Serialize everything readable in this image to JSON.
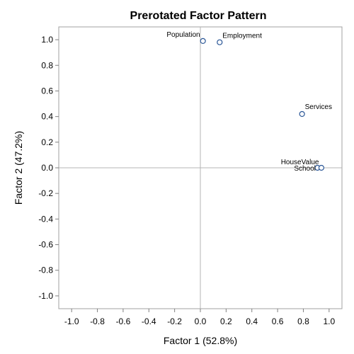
{
  "chart_data": {
    "type": "scatter",
    "title": "Prerotated Factor Pattern",
    "xlabel": "Factor 1 (52.8%)",
    "ylabel": "Factor 2 (47.2%)",
    "xlim": [
      -1.1,
      1.1
    ],
    "ylim": [
      -1.1,
      1.1
    ],
    "xticks": [
      "-1.0",
      "-0.8",
      "-0.6",
      "-0.4",
      "-0.2",
      "0.0",
      "0.2",
      "0.4",
      "0.6",
      "0.8",
      "1.0"
    ],
    "yticks": [
      "1.0",
      "0.8",
      "0.6",
      "0.4",
      "0.2",
      "0.0",
      "-0.2",
      "-0.4",
      "-0.6",
      "-0.8",
      "-1.0"
    ],
    "reference_lines": {
      "x": 0,
      "y": 0
    },
    "grid": false,
    "marker_color": "#2b5797",
    "points": [
      {
        "label": "Population",
        "x": 0.02,
        "y": 0.99
      },
      {
        "label": "Employment",
        "x": 0.15,
        "y": 0.98
      },
      {
        "label": "Services",
        "x": 0.79,
        "y": 0.42
      },
      {
        "label": "HouseValue",
        "x": 0.91,
        "y": 0.0
      },
      {
        "label": "School",
        "x": 0.94,
        "y": 0.0
      }
    ]
  }
}
